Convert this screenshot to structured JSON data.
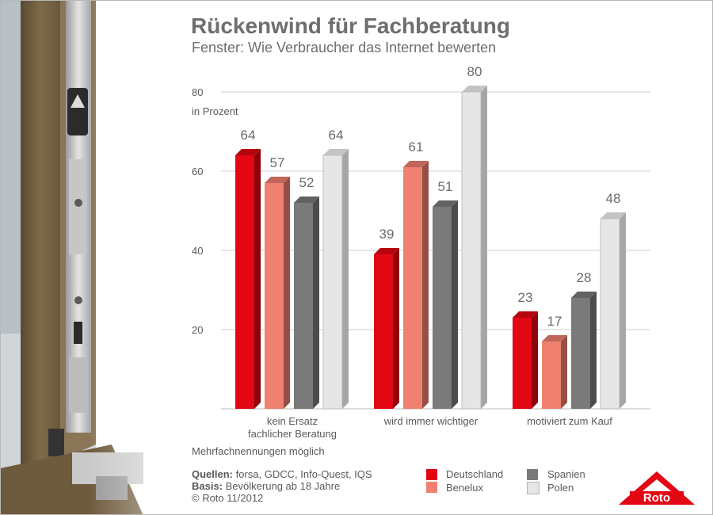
{
  "title": "Rückenwind für Fachberatung",
  "subtitle": "Fenster: Wie Verbraucher das Internet bewerten",
  "note": "Mehrfachnennungen möglich",
  "sources_label": "Quellen:",
  "sources_text": "forsa, GDCC, Info-Quest, IQS",
  "basis_label": "Basis:",
  "basis_text": "Bevölkerung ab 18 Jahre",
  "copyright": "© Roto 11/2012",
  "logo_text": "Roto",
  "chart_data": {
    "type": "bar",
    "ylabel": "in Prozent",
    "ylim": [
      0,
      80
    ],
    "yticks": [
      20,
      40,
      60,
      80
    ],
    "grid": true,
    "categories": [
      [
        "kein Ersatz",
        "fachlicher Beratung"
      ],
      [
        "wird immer wichtiger"
      ],
      [
        "motiviert zum Kauf"
      ]
    ],
    "series": [
      {
        "name": "Deutschland",
        "color": "#e30613",
        "values": [
          64,
          39,
          23
        ]
      },
      {
        "name": "Benelux",
        "color": "#f08070",
        "values": [
          57,
          61,
          17
        ]
      },
      {
        "name": "Spanien",
        "color": "#7a7a7a",
        "values": [
          52,
          51,
          28
        ]
      },
      {
        "name": "Polen",
        "color": "#e6e6e6",
        "values": [
          64,
          80,
          48
        ]
      }
    ],
    "legend_position": "bottom"
  }
}
